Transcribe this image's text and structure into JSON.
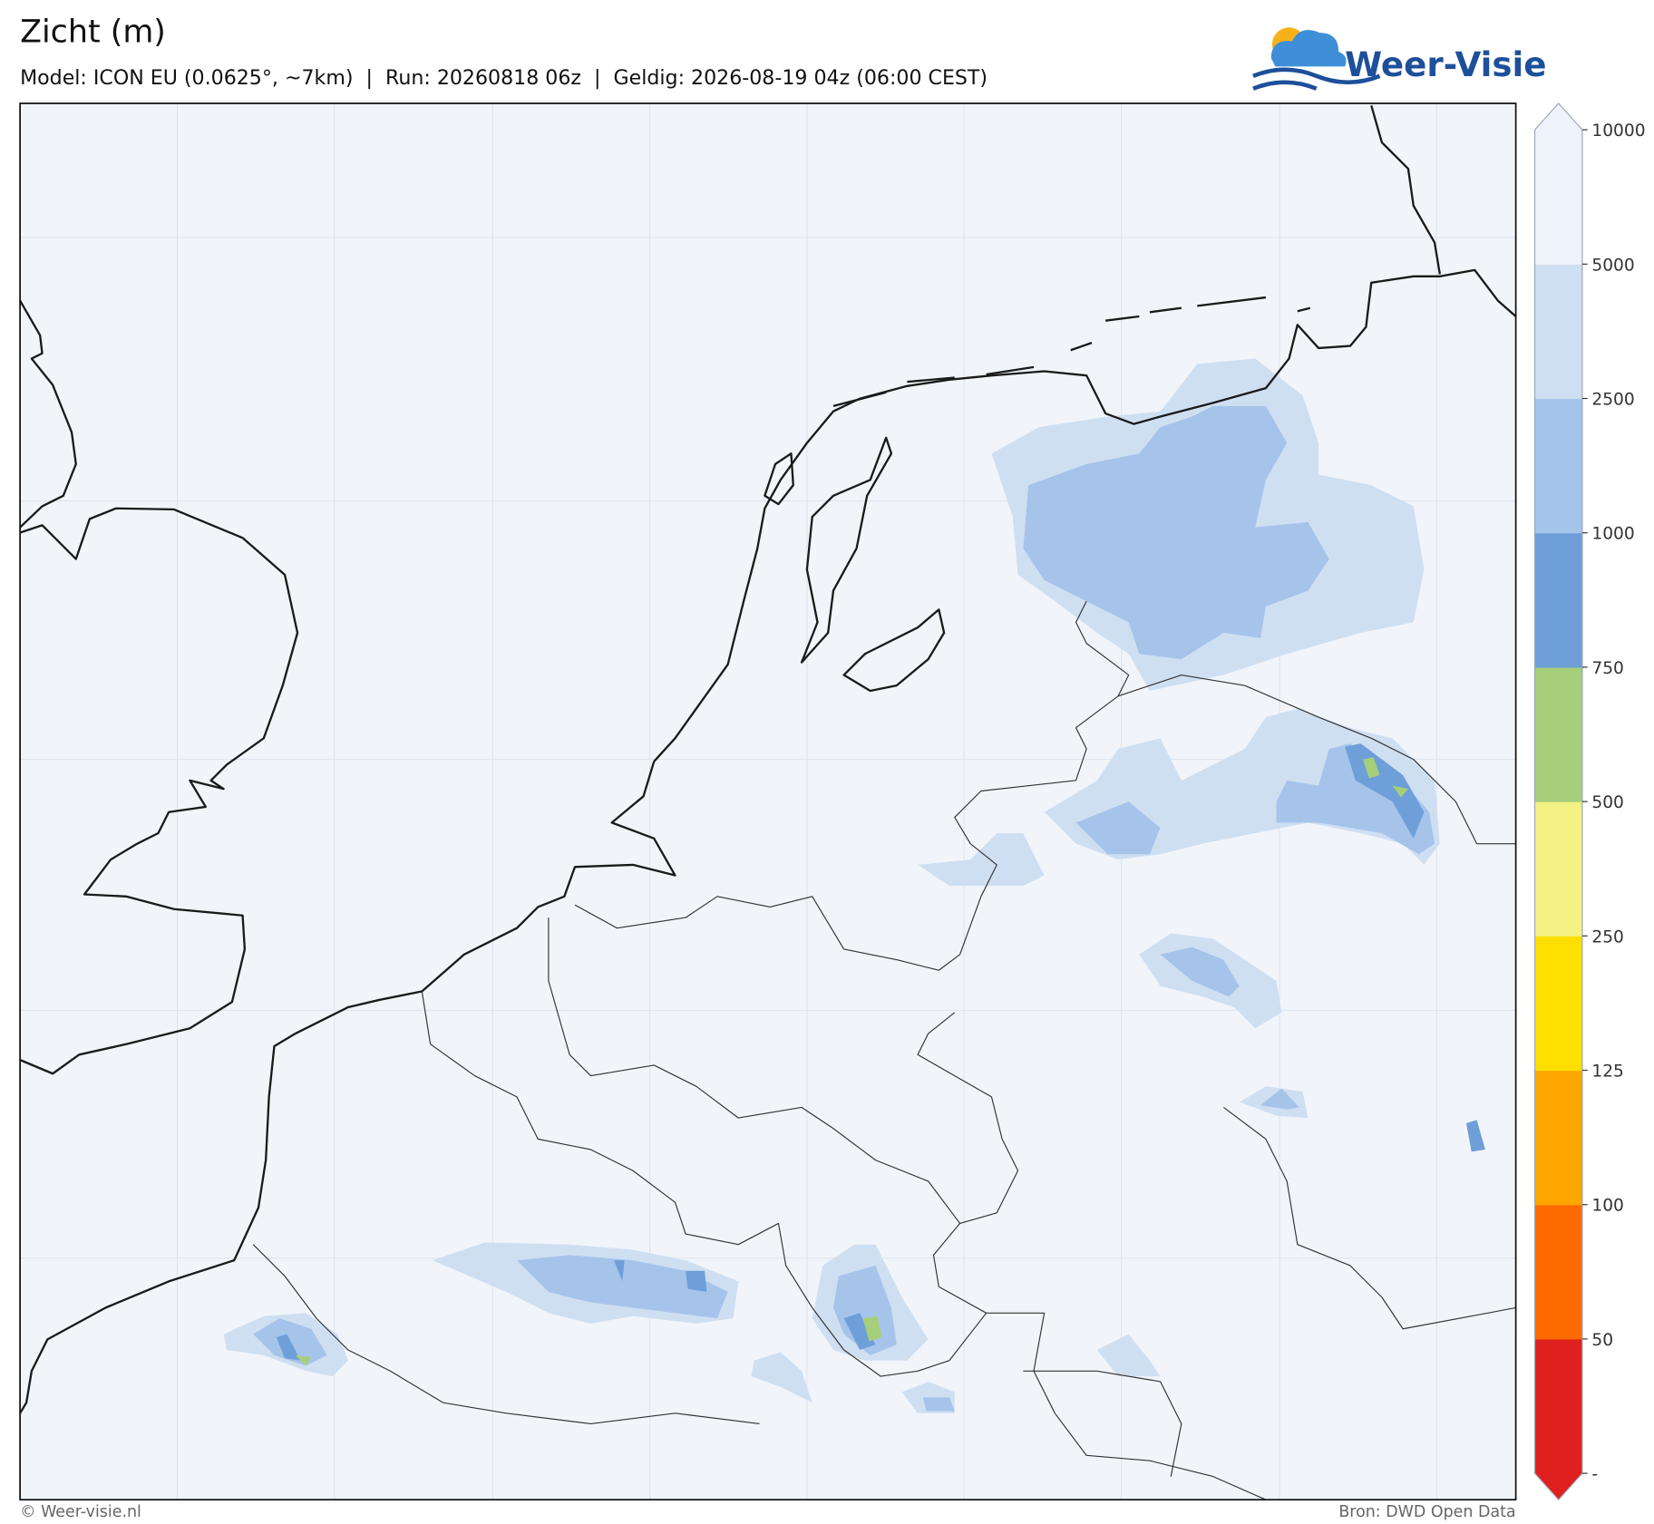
{
  "header": {
    "title": "Zicht (m)",
    "subtitle": "Model: ICON EU (0.0625°, ~7km)  |  Run: 20260818 06z  |  Geldig: 2026-08-19 04z (06:00 CEST)",
    "logo": "Weer-Visie"
  },
  "colorbar": {
    "ticks": [
      "-",
      50,
      100,
      125,
      250,
      500,
      750,
      1000,
      2500,
      5000,
      10000
    ],
    "colors": [
      "#e0201f",
      "#fe6a00",
      "#fda600",
      "#fedf00",
      "#f4f285",
      "#a6cf7b",
      "#6e9fd9",
      "#a5c4ea",
      "#cfdff2",
      "#eff4fa"
    ]
  },
  "footer": {
    "left": "© Weer-visie.nl",
    "right": "Bron: DWD Open Data"
  }
}
